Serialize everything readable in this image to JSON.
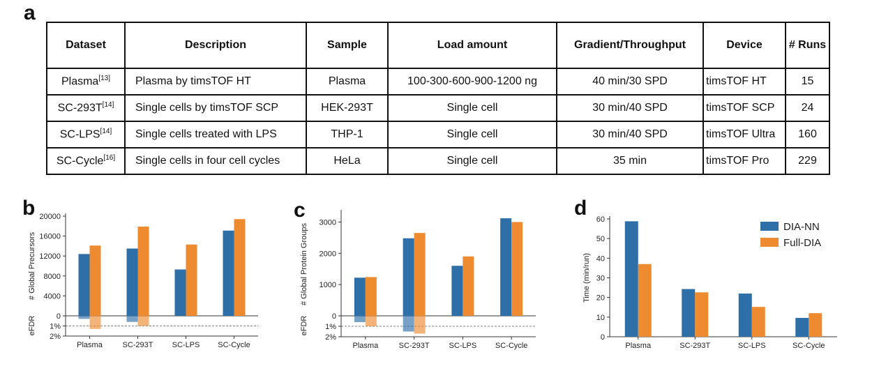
{
  "panels": {
    "a": "a",
    "b": "b",
    "c": "c",
    "d": "d"
  },
  "table": {
    "headers": [
      "Dataset",
      "Description",
      "Sample",
      "Load amount",
      "Gradient/Throughput",
      "Device",
      "# Runs"
    ],
    "rows": [
      {
        "dataset": "Plasma",
        "ref": "[13]",
        "description": "Plasma by timsTOF HT",
        "sample": "Plasma",
        "load": "100-300-600-900-1200 ng",
        "gradient": "40 min/30 SPD",
        "device": "timsTOF HT",
        "runs": "15"
      },
      {
        "dataset": "SC-293T",
        "ref": "[14]",
        "description": "Single cells by timsTOF SCP",
        "sample": "HEK-293T",
        "load": "Single cell",
        "gradient": "30 min/40 SPD",
        "device": "timsTOF SCP",
        "runs": "24"
      },
      {
        "dataset": "SC-LPS",
        "ref": "[14]",
        "description": "Single cells treated with LPS",
        "sample": "THP-1",
        "load": "Single cell",
        "gradient": "30 min/40 SPD",
        "device": "timsTOF Ultra",
        "runs": "160"
      },
      {
        "dataset": "SC-Cycle",
        "ref": "[16]",
        "description": "Single cells in four cell cycles",
        "sample": "HeLa",
        "load": "Single cell",
        "gradient": "35 min",
        "device": "timsTOF Pro",
        "runs": "229"
      }
    ]
  },
  "colors": {
    "dia_nn": "#2e6fa7",
    "full_dia": "#ee8a2f"
  },
  "chart_data": [
    {
      "type": "bar",
      "ylabel": "# Global Precursors",
      "efdr_label": "eFDR",
      "categories": [
        "Plasma",
        "SC-293T",
        "SC-LPS",
        "SC-Cycle"
      ],
      "series": [
        {
          "name": "DIA-NN",
          "values": [
            12400,
            13500,
            9300,
            17100
          ],
          "efdr": [
            0.3,
            0.6,
            0,
            0
          ]
        },
        {
          "name": "Full-DIA",
          "values": [
            14100,
            17900,
            14300,
            19400
          ],
          "efdr": [
            1.3,
            1.0,
            0,
            0
          ]
        }
      ],
      "ylim": [
        0,
        20000
      ],
      "yticks": [
        "0",
        "4000",
        "8000",
        "12000",
        "16000",
        "20000"
      ],
      "efdr_ticks": [
        "1%",
        "2%"
      ],
      "efdr_threshold": 1
    },
    {
      "type": "bar",
      "ylabel": "# Global Protein Groups",
      "efdr_label": "eFDR",
      "categories": [
        "Plasma",
        "SC-293T",
        "SC-LPS",
        "SC-Cycle"
      ],
      "series": [
        {
          "name": "DIA-NN",
          "values": [
            1220,
            2480,
            1600,
            3120
          ],
          "efdr": [
            0.6,
            1.5,
            0,
            0
          ]
        },
        {
          "name": "Full-DIA",
          "values": [
            1240,
            2650,
            1900,
            3000
          ],
          "efdr": [
            1.0,
            1.7,
            0,
            0
          ]
        }
      ],
      "ylim": [
        0,
        3300
      ],
      "yticks": [
        "0",
        "1000",
        "2000",
        "3000"
      ],
      "efdr_ticks": [
        "1%",
        "2%"
      ],
      "efdr_threshold": 1
    },
    {
      "type": "bar",
      "ylabel": "Time (min/run)",
      "categories": [
        "Plasma",
        "SC-293T",
        "SC-LPS",
        "SC-Cycle"
      ],
      "series": [
        {
          "name": "DIA-NN",
          "values": [
            58.8,
            24.3,
            22.0,
            9.6
          ]
        },
        {
          "name": "Full-DIA",
          "values": [
            37.0,
            22.6,
            15.2,
            12.0
          ]
        }
      ],
      "ylim": [
        0,
        60
      ],
      "yticks": [
        "0",
        "10",
        "20",
        "30",
        "40",
        "50",
        "60"
      ],
      "legend": "top-right"
    }
  ]
}
